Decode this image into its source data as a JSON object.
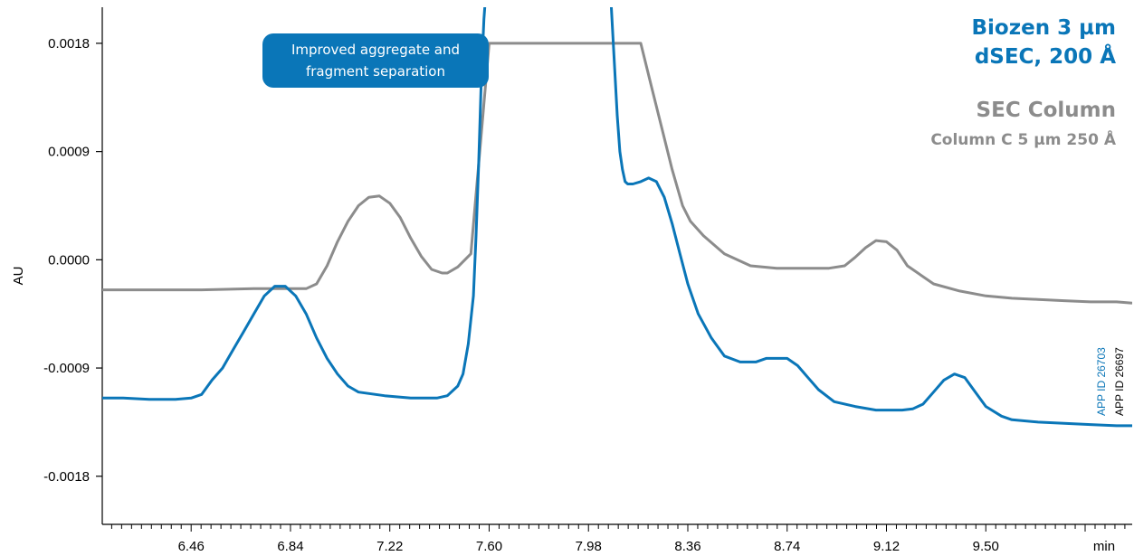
{
  "chart_data": {
    "type": "line",
    "xlabel": "",
    "ylabel": "AU",
    "x_unit_label": "min",
    "xlim": [
      6.12,
      10.06
    ],
    "ylim": [
      -0.0022,
      0.0021
    ],
    "x_ticks": [
      6.46,
      6.84,
      7.22,
      7.6,
      7.98,
      8.36,
      8.74,
      9.12,
      9.5
    ],
    "x_tick_labels": [
      "6.46",
      "6.84",
      "7.22",
      "7.60",
      "7.98",
      "8.36",
      "8.74",
      "9.12",
      "9.50"
    ],
    "y_ticks": [
      0.0018,
      0.0009,
      0.0,
      -0.0009,
      -0.0018
    ],
    "y_tick_labels": [
      "0.0018",
      "0.0009",
      "0.0000",
      "-0.0009",
      "-0.0018"
    ],
    "series": [
      {
        "name": "SEC Column",
        "subtitle": "Column C 5 µm 250 Å",
        "color": "#8c8c8c",
        "x": [
          6.12,
          6.3,
          6.5,
          6.7,
          6.84,
          6.9,
          6.94,
          6.98,
          7.02,
          7.06,
          7.1,
          7.14,
          7.18,
          7.22,
          7.26,
          7.3,
          7.34,
          7.38,
          7.42,
          7.44,
          7.48,
          7.53,
          7.6,
          7.8,
          8.0,
          8.14,
          8.18,
          8.22,
          8.26,
          8.3,
          8.34,
          8.37,
          8.42,
          8.5,
          8.6,
          8.7,
          8.8,
          8.9,
          8.96,
          9.0,
          9.04,
          9.08,
          9.12,
          9.16,
          9.2,
          9.3,
          9.4,
          9.5,
          9.6,
          9.7,
          9.8,
          9.9,
          10.0,
          10.06
        ],
        "y": [
          -0.00025,
          -0.00025,
          -0.00025,
          -0.00024,
          -0.00024,
          -0.00024,
          -0.0002,
          -5e-05,
          0.00015,
          0.00032,
          0.00045,
          0.00052,
          0.00053,
          0.00047,
          0.00035,
          0.00018,
          3e-05,
          -8e-05,
          -0.00011,
          -0.00011,
          -6e-05,
          5e-05,
          0.0018,
          0.0018,
          0.0018,
          0.0018,
          0.0018,
          0.00145,
          0.0011,
          0.00075,
          0.00045,
          0.00032,
          0.0002,
          5e-05,
          -5e-05,
          -7e-05,
          -7e-05,
          -7e-05,
          -5e-05,
          2e-05,
          0.0001,
          0.00016,
          0.00015,
          8e-05,
          -5e-05,
          -0.0002,
          -0.00026,
          -0.0003,
          -0.00032,
          -0.00033,
          -0.00034,
          -0.00035,
          -0.00035,
          -0.00036
        ]
      },
      {
        "name": "Biozen 3 µm dSEC, 200 Å",
        "color": "#0a76b8",
        "x": [
          6.12,
          6.2,
          6.3,
          6.4,
          6.46,
          6.5,
          6.54,
          6.58,
          6.62,
          6.66,
          6.7,
          6.74,
          6.78,
          6.82,
          6.86,
          6.9,
          6.94,
          6.98,
          7.02,
          7.06,
          7.1,
          7.2,
          7.3,
          7.4,
          7.44,
          7.48,
          7.5,
          7.52,
          7.54,
          7.55,
          7.56,
          7.57,
          7.58,
          7.59,
          7.6,
          8.06,
          8.07,
          8.08,
          8.09,
          8.1,
          8.11,
          8.12,
          8.13,
          8.15,
          8.18,
          8.21,
          8.24,
          8.27,
          8.3,
          8.33,
          8.36,
          8.4,
          8.45,
          8.5,
          8.56,
          8.62,
          8.66,
          8.7,
          8.74,
          8.78,
          8.82,
          8.86,
          8.92,
          9.0,
          9.08,
          9.14,
          9.18,
          9.22,
          9.26,
          9.3,
          9.34,
          9.38,
          9.42,
          9.46,
          9.5,
          9.56,
          9.6,
          9.7,
          9.8,
          9.9,
          10.0,
          10.06
        ],
        "y": [
          -0.00115,
          -0.00115,
          -0.00116,
          -0.00116,
          -0.00115,
          -0.00112,
          -0.001,
          -0.0009,
          -0.00075,
          -0.0006,
          -0.00045,
          -0.0003,
          -0.00022,
          -0.00022,
          -0.0003,
          -0.00045,
          -0.00065,
          -0.00082,
          -0.00095,
          -0.00105,
          -0.0011,
          -0.00113,
          -0.00115,
          -0.00115,
          -0.00113,
          -0.00105,
          -0.00095,
          -0.0007,
          -0.0003,
          0.0002,
          0.0008,
          0.0015,
          0.002,
          0.0023,
          0.0024,
          0.0024,
          0.002,
          0.0016,
          0.0012,
          0.0009,
          0.00075,
          0.00065,
          0.00063,
          0.00063,
          0.00065,
          0.00068,
          0.00065,
          0.00052,
          0.0003,
          5e-05,
          -0.0002,
          -0.00045,
          -0.00065,
          -0.0008,
          -0.00085,
          -0.00085,
          -0.00082,
          -0.00082,
          -0.00082,
          -0.00088,
          -0.00098,
          -0.00108,
          -0.00118,
          -0.00122,
          -0.00125,
          -0.00125,
          -0.00125,
          -0.00124,
          -0.0012,
          -0.0011,
          -0.001,
          -0.00095,
          -0.00098,
          -0.0011,
          -0.00122,
          -0.0013,
          -0.00133,
          -0.00135,
          -0.00136,
          -0.00137,
          -0.00138,
          -0.00138
        ]
      }
    ]
  },
  "legend": {
    "blue_line1": "Biozen 3 µm",
    "blue_line2": "dSEC, 200 Å",
    "gray_line1": "SEC Column",
    "gray_line2": "Column C 5 µm 250 Å"
  },
  "annotation": {
    "line1": "Improved aggregate and",
    "line2": "fragment separation",
    "background": "#0a76b8"
  },
  "app_ids": {
    "blue": "APP ID 26703",
    "black": "APP ID 26697"
  },
  "colors": {
    "axis": "#000000",
    "gray_series": "#8c8c8c",
    "blue_series": "#0a76b8"
  }
}
